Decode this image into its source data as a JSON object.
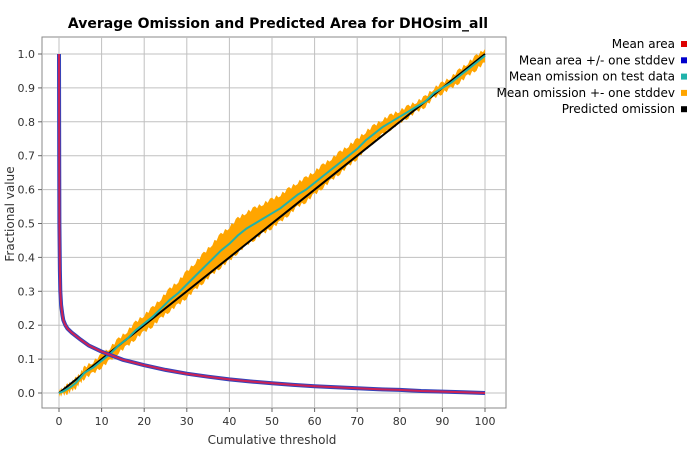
{
  "chart_data": {
    "type": "line",
    "title": "Average Omission and Predicted Area for DHOsim_all",
    "xlabel": "Cumulative threshold",
    "ylabel": "Fractional value",
    "xlim": [
      0,
      100
    ],
    "ylim": [
      0,
      1.0
    ],
    "xticks": [
      0,
      10,
      20,
      30,
      40,
      50,
      60,
      70,
      80,
      90,
      100
    ],
    "yticks": [
      0.0,
      0.1,
      0.2,
      0.3,
      0.4,
      0.5,
      0.6,
      0.7,
      0.8,
      0.9,
      1.0
    ],
    "xtick_labels": [
      "0",
      "10",
      "20",
      "30",
      "40",
      "50",
      "60",
      "70",
      "80",
      "90",
      "100"
    ],
    "ytick_labels": [
      "0.0",
      "0.1",
      "0.2",
      "0.3",
      "0.4",
      "0.5",
      "0.6",
      "0.7",
      "0.8",
      "0.9",
      "1.0"
    ],
    "grid": true,
    "legend_position": "right",
    "legend": [
      {
        "label": "Mean area",
        "color": "#dd0000"
      },
      {
        "label": "Mean area +/- one stddev",
        "color": "#0000cc"
      },
      {
        "label": "Mean omission on test data",
        "color": "#20b2aa"
      },
      {
        "label": "Mean omission +- one stddev",
        "color": "#ffa500"
      },
      {
        "label": "Predicted omission",
        "color": "#000000"
      }
    ],
    "series": [
      {
        "key": "mean_area",
        "color": "#cc2255",
        "x": [
          0,
          0.05,
          0.1,
          0.2,
          0.3,
          0.5,
          0.8,
          1,
          1.5,
          2,
          3,
          4,
          5,
          7,
          10,
          15,
          20,
          25,
          30,
          35,
          40,
          45,
          50,
          55,
          60,
          65,
          70,
          75,
          80,
          85,
          90,
          95,
          100
        ],
        "y": [
          1.0,
          0.7,
          0.5,
          0.36,
          0.3,
          0.26,
          0.23,
          0.215,
          0.2,
          0.19,
          0.178,
          0.168,
          0.158,
          0.14,
          0.122,
          0.098,
          0.082,
          0.068,
          0.057,
          0.048,
          0.04,
          0.034,
          0.029,
          0.024,
          0.02,
          0.017,
          0.014,
          0.011,
          0.009,
          0.006,
          0.004,
          0.002,
          0.0
        ]
      },
      {
        "key": "predicted_omission",
        "color": "#000000",
        "x": [
          0,
          100
        ],
        "y": [
          0.0,
          1.0
        ]
      },
      {
        "key": "mean_omission",
        "color": "#20b2aa",
        "band_color": "#ffa500",
        "x": [
          0,
          1,
          2,
          3,
          4,
          5,
          6,
          8,
          10,
          12,
          14,
          16,
          18,
          20,
          22,
          24,
          26,
          28,
          30,
          32,
          34,
          36,
          38,
          40,
          42,
          44,
          46,
          48,
          50,
          52,
          54,
          56,
          58,
          60,
          62,
          64,
          66,
          68,
          70,
          72,
          74,
          76,
          78,
          80,
          82,
          84,
          86,
          88,
          90,
          92,
          94,
          96,
          98,
          100
        ],
        "y": [
          0.0,
          0.005,
          0.012,
          0.02,
          0.03,
          0.045,
          0.06,
          0.075,
          0.095,
          0.115,
          0.14,
          0.16,
          0.185,
          0.205,
          0.225,
          0.25,
          0.275,
          0.295,
          0.32,
          0.345,
          0.37,
          0.395,
          0.42,
          0.44,
          0.465,
          0.485,
          0.5,
          0.515,
          0.53,
          0.545,
          0.565,
          0.585,
          0.6,
          0.62,
          0.64,
          0.66,
          0.68,
          0.7,
          0.72,
          0.745,
          0.765,
          0.785,
          0.8,
          0.815,
          0.83,
          0.845,
          0.86,
          0.885,
          0.9,
          0.915,
          0.935,
          0.955,
          0.975,
          0.995
        ],
        "band_halfwidth": [
          0.008,
          0.01,
          0.012,
          0.013,
          0.014,
          0.015,
          0.016,
          0.017,
          0.018,
          0.019,
          0.02,
          0.022,
          0.024,
          0.025,
          0.027,
          0.029,
          0.032,
          0.035,
          0.038,
          0.04,
          0.042,
          0.045,
          0.048,
          0.05,
          0.05,
          0.048,
          0.046,
          0.044,
          0.042,
          0.04,
          0.038,
          0.036,
          0.035,
          0.034,
          0.033,
          0.032,
          0.031,
          0.03,
          0.028,
          0.026,
          0.024,
          0.022,
          0.02,
          0.018,
          0.016,
          0.015,
          0.014,
          0.014,
          0.015,
          0.016,
          0.018,
          0.019,
          0.02,
          0.02
        ]
      }
    ]
  }
}
